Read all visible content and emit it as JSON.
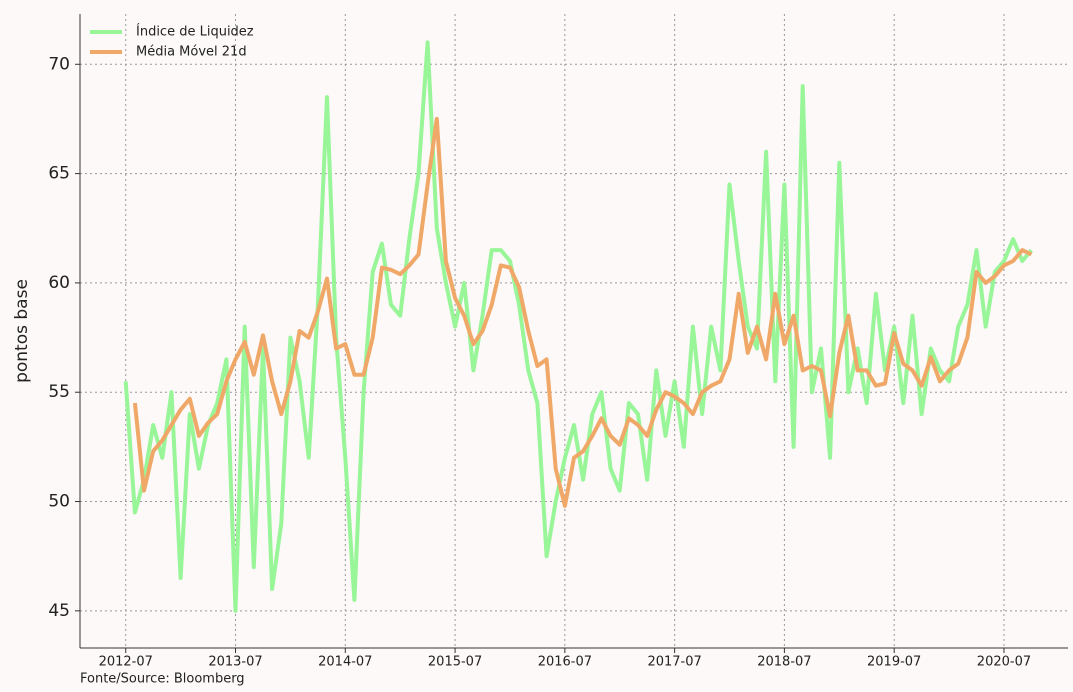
{
  "chart_data": {
    "type": "line",
    "y_label": "pontos base",
    "source": "Fonte/Source: Bloomberg",
    "x": [
      "2012-07",
      "2012-08",
      "2012-09",
      "2012-10",
      "2012-11",
      "2012-12",
      "2013-01",
      "2013-02",
      "2013-03",
      "2013-04",
      "2013-05",
      "2013-06",
      "2013-07",
      "2013-08",
      "2013-09",
      "2013-10",
      "2013-11",
      "2013-12",
      "2014-01",
      "2014-02",
      "2014-03",
      "2014-04",
      "2014-05",
      "2014-06",
      "2014-07",
      "2014-08",
      "2014-09",
      "2014-10",
      "2014-11",
      "2014-12",
      "2015-01",
      "2015-02",
      "2015-03",
      "2015-04",
      "2015-05",
      "2015-06",
      "2015-07",
      "2015-08",
      "2015-09",
      "2015-10",
      "2015-11",
      "2015-12",
      "2016-01",
      "2016-02",
      "2016-03",
      "2016-04",
      "2016-05",
      "2016-06",
      "2016-07",
      "2016-08",
      "2016-09",
      "2016-10",
      "2016-11",
      "2016-12",
      "2017-01",
      "2017-02",
      "2017-03",
      "2017-04",
      "2017-05",
      "2017-06",
      "2017-07",
      "2017-08",
      "2017-09",
      "2017-10",
      "2017-11",
      "2017-12",
      "2018-01",
      "2018-02",
      "2018-03",
      "2018-04",
      "2018-05",
      "2018-06",
      "2018-07",
      "2018-08",
      "2018-09",
      "2018-10",
      "2018-11",
      "2018-12",
      "2019-01",
      "2019-02",
      "2019-03",
      "2019-04",
      "2019-05",
      "2019-06",
      "2019-07",
      "2019-08",
      "2019-09",
      "2019-10",
      "2019-11",
      "2019-12",
      "2020-01",
      "2020-02",
      "2020-03",
      "2020-04",
      "2020-05",
      "2020-06",
      "2020-07",
      "2020-08",
      "2020-09",
      "2020-10"
    ],
    "series": [
      {
        "name": "Índice de Liquidez",
        "color": "#98f598",
        "width": 4,
        "values": [
          55.5,
          49.5,
          51.0,
          53.5,
          52.0,
          55.0,
          46.5,
          54.0,
          51.5,
          53.5,
          54.5,
          56.5,
          45.0,
          58.0,
          47.0,
          57.0,
          46.0,
          49.0,
          57.5,
          55.5,
          52.0,
          59.0,
          68.5,
          57.5,
          52.0,
          45.5,
          55.0,
          60.5,
          61.8,
          59.0,
          58.5,
          62.0,
          65.0,
          71.0,
          62.5,
          60.0,
          58.0,
          60.0,
          56.0,
          58.5,
          61.5,
          61.5,
          61.0,
          59.0,
          56.0,
          54.5,
          47.5,
          50.0,
          52.0,
          53.5,
          51.0,
          54.0,
          55.0,
          51.5,
          50.5,
          54.5,
          54.0,
          51.0,
          56.0,
          53.0,
          55.5,
          52.5,
          58.0,
          54.0,
          58.0,
          56.0,
          64.5,
          61.0,
          58.0,
          57.0,
          66.0,
          55.5,
          64.5,
          52.5,
          69.0,
          55.0,
          57.0,
          52.0,
          65.5,
          55.0,
          57.0,
          54.5,
          59.5,
          56.0,
          58.0,
          54.5,
          58.5,
          54.0,
          57.0,
          56.0,
          55.5,
          58.0,
          59.0,
          61.5,
          58.0,
          60.5,
          61.0,
          62.0,
          61.0,
          61.5
        ]
      },
      {
        "name": "Média Móvel 21d",
        "color": "#f0a868",
        "width": 4,
        "values": [
          null,
          54.5,
          50.5,
          52.3,
          52.8,
          53.5,
          54.2,
          54.7,
          53.0,
          53.6,
          54.0,
          55.5,
          56.5,
          57.3,
          55.8,
          57.6,
          55.5,
          54.0,
          55.5,
          57.8,
          57.5,
          58.7,
          60.2,
          57.0,
          57.2,
          55.8,
          55.8,
          57.5,
          60.7,
          60.6,
          60.4,
          60.8,
          61.3,
          64.5,
          67.5,
          61.0,
          59.3,
          58.5,
          57.2,
          57.8,
          59.0,
          60.8,
          60.7,
          59.8,
          57.8,
          56.2,
          56.5,
          51.5,
          49.8,
          52.0,
          52.3,
          53.0,
          53.8,
          53.0,
          52.6,
          53.8,
          53.5,
          53.0,
          54.2,
          55.0,
          54.8,
          54.5,
          54.0,
          55.0,
          55.3,
          55.5,
          56.5,
          59.5,
          56.8,
          58.0,
          56.5,
          59.5,
          57.2,
          58.5,
          56.0,
          56.2,
          56.0,
          53.9,
          56.8,
          58.5,
          56.0,
          56.0,
          55.3,
          55.4,
          57.7,
          56.3,
          56.0,
          55.3,
          56.6,
          55.5,
          56.0,
          56.3,
          57.5,
          60.5,
          60.0,
          60.3,
          60.8,
          61.0,
          61.5,
          61.3
        ]
      }
    ],
    "xlim": [
      "2012-02",
      "2021-02"
    ],
    "xticks": [
      "2012-07",
      "2013-07",
      "2014-07",
      "2015-07",
      "2016-07",
      "2017-07",
      "2018-07",
      "2019-07",
      "2020-07"
    ],
    "ylim": [
      43.3,
      72.3
    ],
    "yticks": [
      45,
      50,
      55,
      60,
      65,
      70
    ],
    "grid": true,
    "legend": "upper left"
  }
}
